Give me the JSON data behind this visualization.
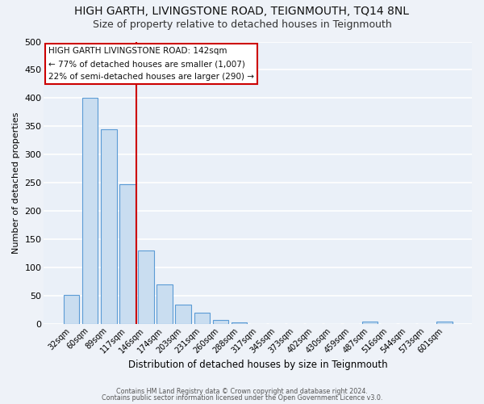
{
  "title": "HIGH GARTH, LIVINGSTONE ROAD, TEIGNMOUTH, TQ14 8NL",
  "subtitle": "Size of property relative to detached houses in Teignmouth",
  "xlabel": "Distribution of detached houses by size in Teignmouth",
  "ylabel": "Number of detached properties",
  "bar_labels": [
    "32sqm",
    "60sqm",
    "89sqm",
    "117sqm",
    "146sqm",
    "174sqm",
    "203sqm",
    "231sqm",
    "260sqm",
    "288sqm",
    "317sqm",
    "345sqm",
    "373sqm",
    "402sqm",
    "430sqm",
    "459sqm",
    "487sqm",
    "516sqm",
    "544sqm",
    "573sqm",
    "601sqm"
  ],
  "bar_values": [
    52,
    401,
    345,
    248,
    130,
    71,
    35,
    21,
    7,
    3,
    0,
    0,
    0,
    0,
    0,
    0,
    5,
    0,
    0,
    0,
    5
  ],
  "bar_color": "#c9ddf0",
  "bar_edge_color": "#5b9bd5",
  "vline_color": "#cc0000",
  "annotation_title": "HIGH GARTH LIVINGSTONE ROAD: 142sqm",
  "annotation_line1": "← 77% of detached houses are smaller (1,007)",
  "annotation_line2": "22% of semi-detached houses are larger (290) →",
  "annotation_box_facecolor": "#ffffff",
  "annotation_box_edge": "#cc0000",
  "ylim": [
    0,
    500
  ],
  "yticks": [
    0,
    50,
    100,
    150,
    200,
    250,
    300,
    350,
    400,
    450,
    500
  ],
  "footer1": "Contains HM Land Registry data © Crown copyright and database right 2024.",
  "footer2": "Contains public sector information licensed under the Open Government Licence v3.0.",
  "title_fontsize": 10,
  "subtitle_fontsize": 9,
  "fig_facecolor": "#eef2f8",
  "ax_facecolor": "#eaf0f8",
  "grid_color": "#ffffff",
  "ylabel_fontsize": 8,
  "xlabel_fontsize": 8.5
}
